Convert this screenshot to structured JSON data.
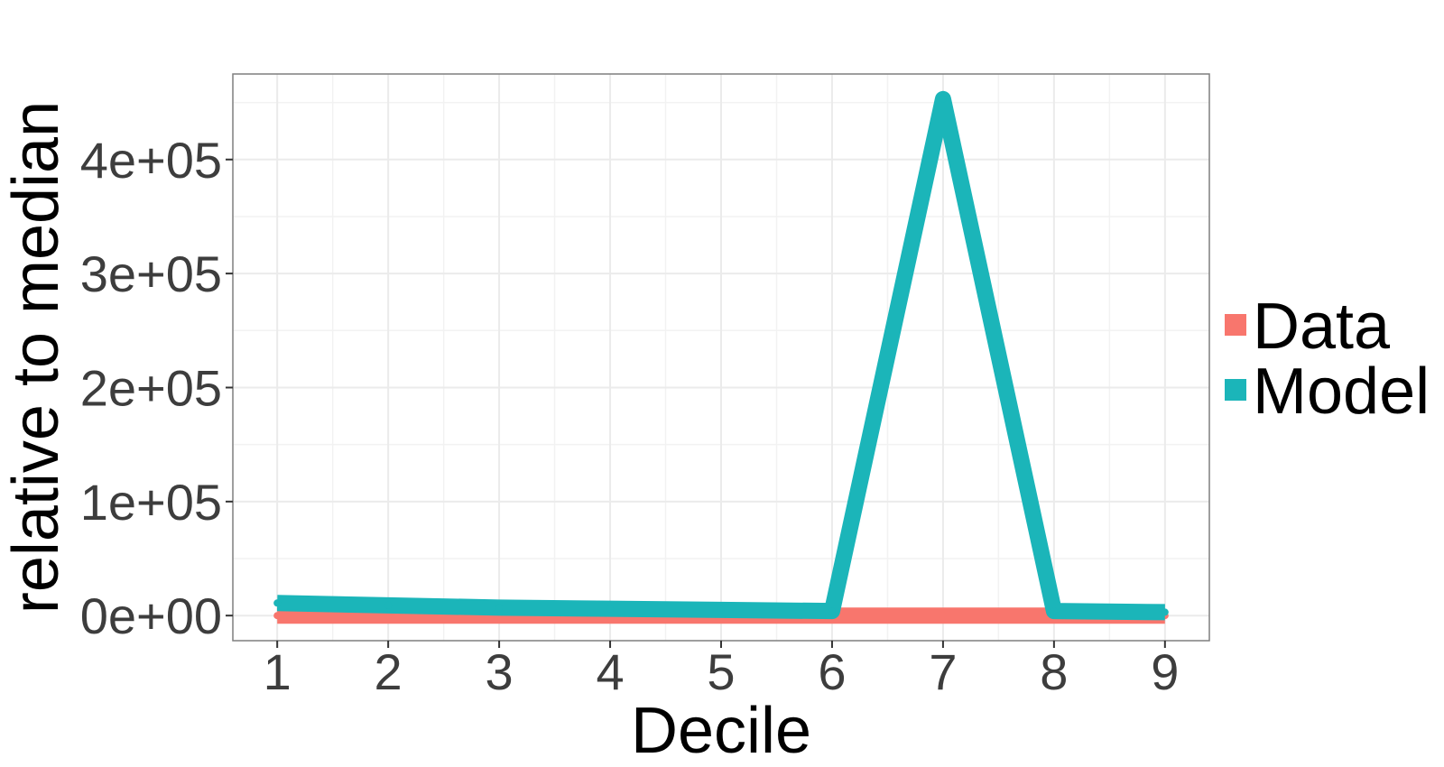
{
  "chart_data": {
    "type": "line",
    "title": "",
    "xlabel": "Decile",
    "ylabel": "relative to median",
    "x": [
      1,
      2,
      3,
      4,
      5,
      6,
      7,
      8,
      9
    ],
    "x_tick_labels": [
      "1",
      "2",
      "3",
      "4",
      "5",
      "6",
      "7",
      "8",
      "9"
    ],
    "xlim": [
      0.6,
      9.4
    ],
    "ylim": [
      -22000,
      475000
    ],
    "y_ticks": [
      0,
      100000,
      200000,
      300000,
      400000
    ],
    "y_tick_labels": [
      "0e+00",
      "1e+05",
      "2e+05",
      "3e+05",
      "4e+05"
    ],
    "grid": true,
    "legend_position": "right",
    "series": [
      {
        "name": "Data",
        "color": "#F8766D",
        "values": [
          0,
          0,
          0,
          0,
          0,
          0,
          0,
          0,
          0
        ]
      },
      {
        "name": "Model",
        "color": "#1BB5B9",
        "values": [
          11000,
          9000,
          7000,
          6000,
          5000,
          4000,
          453000,
          4000,
          3000
        ]
      }
    ]
  }
}
